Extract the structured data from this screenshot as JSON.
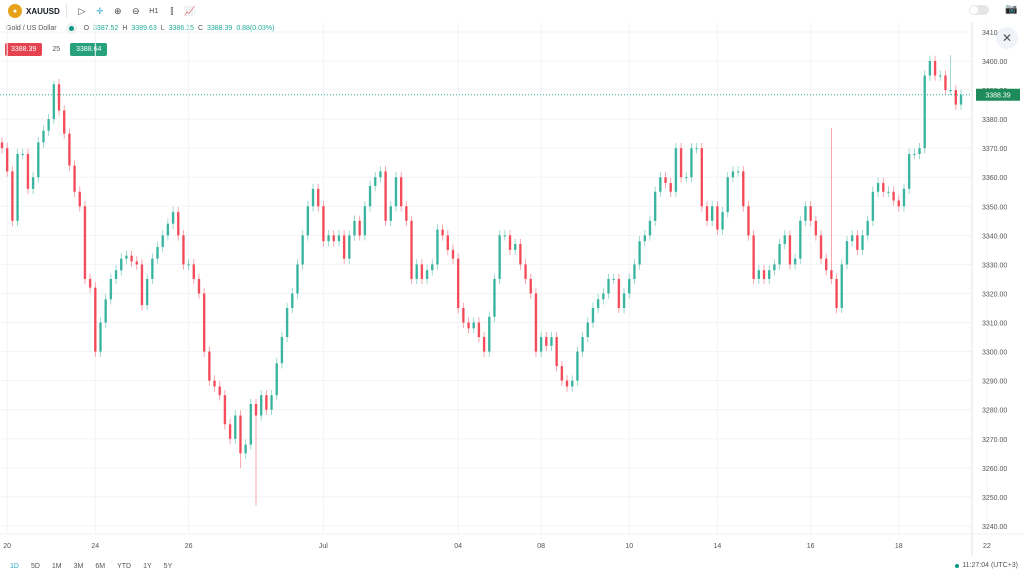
{
  "toolbar": {
    "symbol": "XAUUSD",
    "interval": "H1",
    "icons": [
      "cursor-icon",
      "crosshair-icon",
      "zoom-in-icon",
      "zoom-out-icon",
      "interval",
      "candles-icon",
      "indicators-icon"
    ]
  },
  "legend": {
    "name": "Gold / US Dollar",
    "o_label": "O",
    "o": "3387.52",
    "h_label": "H",
    "h": "3389.63",
    "l_label": "L",
    "l": "3386.15",
    "c_label": "C",
    "c": "3388.39",
    "change": "0.88(0.03%)"
  },
  "trade": {
    "sell": "3388.39",
    "spread": "25",
    "buy": "3388.64"
  },
  "colors": {
    "up": "#22ab94",
    "down": "#f23645",
    "sell": "#e5434f",
    "buy": "#26a17b",
    "price_label": "#1e8b5a",
    "range_active": "#2aa8c7"
  },
  "ranges": [
    "1D",
    "5D",
    "1M",
    "3M",
    "6M",
    "YTD",
    "1Y",
    "5Y"
  ],
  "active_range": "1D",
  "clock": "11:27:04 (UTC+3)",
  "chart_data": {
    "type": "candlestick",
    "interval": "H1",
    "current_price": 3388.39,
    "current_price_label": "3388.39",
    "ylim": [
      3235,
      3415
    ],
    "y_ticks": [
      "3410",
      "3400.00",
      "3390.00",
      "3380.00",
      "3370.00",
      "3360.00",
      "3350.00",
      "3340.00",
      "3330.00",
      "3320.00",
      "3310.00",
      "3300.00",
      "3290.00",
      "3280.00",
      "3270.00",
      "3260.00",
      "3250.00",
      "3240.00"
    ],
    "y_tick_values": [
      3410,
      3400,
      3390,
      3380,
      3370,
      3360,
      3350,
      3340,
      3330,
      3320,
      3310,
      3300,
      3290,
      3280,
      3270,
      3260,
      3250,
      3240
    ],
    "x_ticks": [
      "20",
      "24",
      "26",
      "Jul",
      "04",
      "08",
      "10",
      "14",
      "16",
      "18",
      "22"
    ],
    "x_tick_index": [
      1,
      18,
      36,
      62,
      88,
      104,
      121,
      138,
      156,
      173,
      190
    ],
    "closes": [
      3370,
      3362,
      3345,
      3368,
      3368,
      3356,
      3360,
      3372,
      3376,
      3380,
      3392,
      3383,
      3375,
      3364,
      3355,
      3350,
      3325,
      3322,
      3300,
      3310,
      3318,
      3325,
      3328,
      3332,
      3333,
      3331,
      3330,
      3316,
      3325,
      3332,
      3336,
      3340,
      3344,
      3348,
      3340,
      3330,
      3330,
      3325,
      3320,
      3300,
      3290,
      3288,
      3285,
      3275,
      3270,
      3278,
      3265,
      3268,
      3282,
      3278,
      3285,
      3280,
      3285,
      3296,
      3305,
      3315,
      3320,
      3330,
      3340,
      3350,
      3356,
      3350,
      3338,
      3340,
      3338,
      3340,
      3332,
      3340,
      3345,
      3340,
      3350,
      3357,
      3360,
      3362,
      3345,
      3350,
      3360,
      3350,
      3345,
      3325,
      3330,
      3325,
      3328,
      3330,
      3342,
      3340,
      3335,
      3332,
      3315,
      3310,
      3308,
      3310,
      3305,
      3300,
      3312,
      3325,
      3340,
      3340,
      3335,
      3337,
      3330,
      3325,
      3320,
      3300,
      3305,
      3302,
      3305,
      3295,
      3290,
      3288,
      3290,
      3300,
      3305,
      3310,
      3315,
      3318,
      3320,
      3325,
      3325,
      3315,
      3320,
      3325,
      3330,
      3338,
      3340,
      3345,
      3355,
      3360,
      3358,
      3355,
      3370,
      3360,
      3360,
      3370,
      3370,
      3350,
      3345,
      3350,
      3342,
      3348,
      3360,
      3362,
      3362,
      3350,
      3340,
      3325,
      3328,
      3325,
      3328,
      3330,
      3337,
      3340,
      3330,
      3332,
      3345,
      3350,
      3345,
      3340,
      3332,
      3328,
      3325,
      3315,
      3330,
      3338,
      3340,
      3335,
      3340,
      3345,
      3355,
      3358,
      3355,
      3355,
      3352,
      3350,
      3356,
      3368,
      3368,
      3370,
      3395,
      3400,
      3395,
      3395,
      3390,
      3390,
      3385,
      3388.39
    ],
    "notable_extremes": [
      {
        "index": 10,
        "high": 3393
      },
      {
        "index": 49,
        "low": 3247
      },
      {
        "index": 46,
        "low": 3260
      },
      {
        "index": 160,
        "high": 3377
      },
      {
        "index": 183,
        "high": 3402
      }
    ]
  }
}
